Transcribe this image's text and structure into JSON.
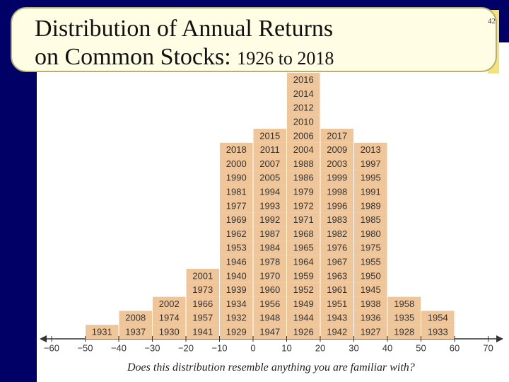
{
  "slide": {
    "title_lines": [
      "Distribution of Annual Returns",
      "on Common Stocks:"
    ],
    "title_years": "1926 to 2018",
    "page_number": "42",
    "caption": "Does this distribution resemble anything you are familiar with?"
  },
  "histogram": {
    "axis_ticks": [
      "−60",
      "−50",
      "−40",
      "−30",
      "−20",
      "−10",
      "0",
      "10",
      "20",
      "30",
      "40",
      "50",
      "60",
      "70"
    ],
    "columns": [
      [],
      [
        "1931"
      ],
      [
        "1937",
        "2008"
      ],
      [
        "1930",
        "1974",
        "2002"
      ],
      [
        "1941",
        "1957",
        "1966",
        "1973",
        "2001"
      ],
      [
        "1929",
        "1932",
        "1934",
        "1939",
        "1940",
        "1946",
        "1953",
        "1962",
        "1969",
        "1977",
        "1981",
        "1990",
        "2000",
        "2018"
      ],
      [
        "1947",
        "1948",
        "1956",
        "1960",
        "1970",
        "1978",
        "1984",
        "1987",
        "1992",
        "1993",
        "1994",
        "2005",
        "2007",
        "2011",
        "2015"
      ],
      [
        "1926",
        "1944",
        "1949",
        "1952",
        "1959",
        "1964",
        "1965",
        "1968",
        "1971",
        "1972",
        "1979",
        "1986",
        "1988",
        "2004",
        "2006",
        "2010",
        "2012",
        "2014",
        "2016"
      ],
      [
        "1942",
        "1943",
        "1951",
        "1961",
        "1963",
        "1967",
        "1976",
        "1982",
        "1983",
        "1996",
        "1998",
        "1999",
        "2003",
        "2009",
        "2017"
      ],
      [
        "1927",
        "1936",
        "1938",
        "1945",
        "1950",
        "1955",
        "1975",
        "1980",
        "1985",
        "1989",
        "1991",
        "1995",
        "1997",
        "2013"
      ],
      [
        "1928",
        "1935",
        "1958"
      ],
      [
        "1933",
        "1954"
      ]
    ]
  }
}
